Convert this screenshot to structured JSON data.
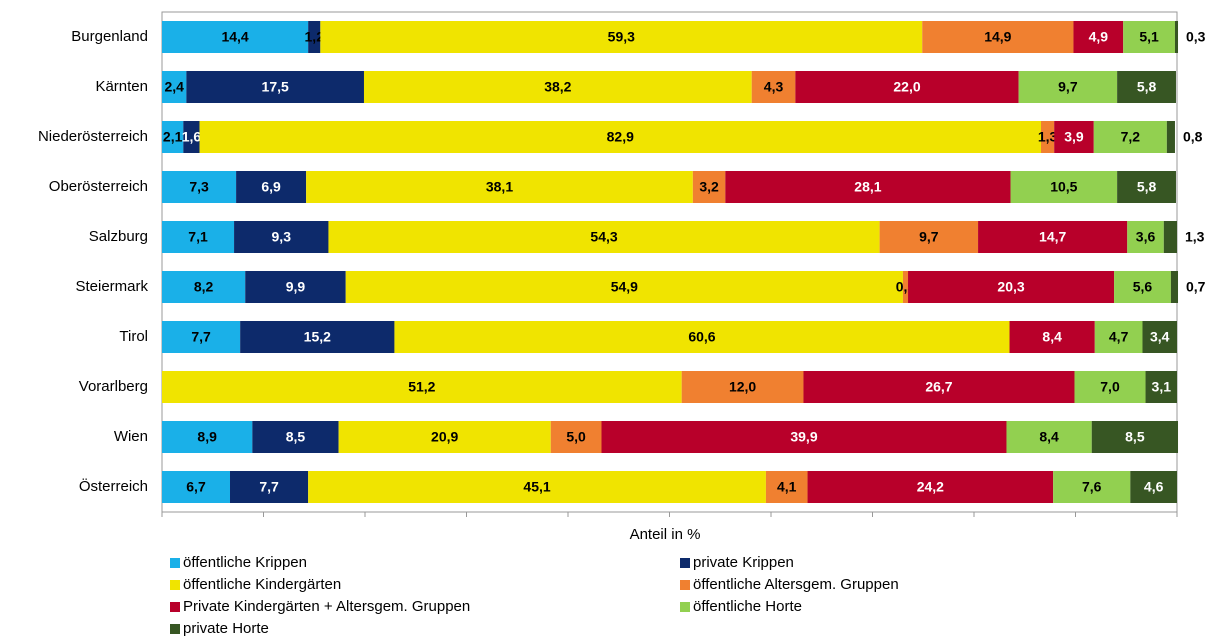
{
  "chart_data": {
    "type": "stacked-barh",
    "xlabel": "Anteil in %",
    "categories": [
      "Burgenland",
      "Kärnten",
      "Niederösterreich",
      "Oberösterreich",
      "Salzburg",
      "Steiermark",
      "Tirol",
      "Vorarlberg",
      "Wien",
      "Österreich"
    ],
    "xlim": [
      0,
      100
    ],
    "xticks": [
      0,
      10,
      20,
      30,
      40,
      50,
      60,
      70,
      80,
      90,
      100
    ],
    "series": [
      {
        "name": "öffentliche Krippen",
        "color": "#1ab0e8",
        "values": [
          14.4,
          2.4,
          2.1,
          7.3,
          7.1,
          8.2,
          7.7,
          null,
          8.9,
          6.7
        ],
        "value_labels": [
          "14,4",
          "2,4",
          "2,1",
          "7,3",
          "7,1",
          "8,2",
          "7,7",
          null,
          "8,9",
          "6,7"
        ]
      },
      {
        "name": "private Krippen",
        "color": "#0d2a6b",
        "values": [
          1.2,
          17.5,
          1.6,
          6.9,
          9.3,
          9.9,
          15.2,
          null,
          8.5,
          7.7
        ],
        "value_labels": [
          "1,2",
          "17,5",
          "1,6",
          "6,9",
          "9,3",
          "9,9",
          "15,2",
          null,
          "8,5",
          "7,7"
        ]
      },
      {
        "name": "öffentliche Kindergärten",
        "color": "#f0e400",
        "values": [
          59.3,
          38.2,
          82.9,
          38.1,
          54.3,
          54.9,
          60.6,
          51.2,
          20.9,
          45.1
        ],
        "value_labels": [
          "59,3",
          "38,2",
          "82,9",
          "38,1",
          "54,3",
          "54,9",
          "60,6",
          "51,2",
          "20,9",
          "45,1"
        ]
      },
      {
        "name": "öffentliche Altersgem. Gruppen",
        "color": "#f08030",
        "values": [
          14.9,
          4.3,
          1.3,
          3.2,
          9.7,
          0.5,
          null,
          12.0,
          5.0,
          4.1
        ],
        "value_labels": [
          "14,9",
          "4,3",
          "1,3",
          "3,2",
          "9,7",
          "0,5",
          null,
          "12,0",
          "5,0",
          "4,1"
        ]
      },
      {
        "name": "Private Kindergärten + Altersgem. Gruppen",
        "color": "#b8002a",
        "values": [
          4.9,
          22.0,
          3.9,
          28.1,
          14.7,
          20.3,
          8.4,
          26.7,
          39.9,
          24.2
        ],
        "value_labels": [
          "4,9",
          "22,0",
          "3,9",
          "28,1",
          "14,7",
          "20,3",
          "8,4",
          "26,7",
          "39,9",
          "24,2"
        ]
      },
      {
        "name": "öffentliche Horte",
        "color": "#92d050",
        "values": [
          5.1,
          9.7,
          7.2,
          10.5,
          3.6,
          5.6,
          4.7,
          7.0,
          8.4,
          7.6
        ],
        "value_labels": [
          "5,1",
          "9,7",
          "7,2",
          "10,5",
          "3,6",
          "5,6",
          "4,7",
          "7,0",
          "8,4",
          "7,6"
        ]
      },
      {
        "name": "private Horte",
        "color": "#375623",
        "values": [
          0.3,
          5.8,
          0.8,
          5.8,
          1.3,
          0.7,
          3.4,
          3.1,
          8.5,
          4.6
        ],
        "value_labels": [
          "0,3",
          "5,8",
          "0,8",
          "5,8",
          "1,3",
          "0,7",
          "3,4",
          "3,1",
          "8,5",
          "4,6"
        ]
      }
    ]
  }
}
